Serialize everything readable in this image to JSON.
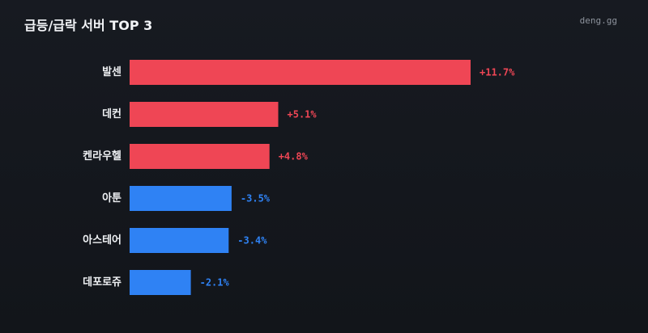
{
  "header": {
    "title": "급등/급락 서버 TOP 3",
    "brand": "deng.gg"
  },
  "colors": {
    "up": "#ef4655",
    "down": "#2f82f4",
    "background": "#14171d"
  },
  "chart_data": {
    "type": "bar",
    "orientation": "horizontal",
    "title": "급등/급락 서버 TOP 3",
    "categories": [
      "발센",
      "데컨",
      "켄라우헬",
      "아툰",
      "아스테어",
      "데포로쥬"
    ],
    "values": [
      11.7,
      5.1,
      4.8,
      -3.5,
      -3.4,
      -2.1
    ],
    "value_labels": [
      "+11.7%",
      "+5.1%",
      "+4.8%",
      "-3.5%",
      "-3.4%",
      "-2.1%"
    ],
    "unit": "%",
    "bar_length_scale": "absolute value",
    "xlim": [
      0,
      11.7
    ],
    "grid": false,
    "legend": "none"
  }
}
